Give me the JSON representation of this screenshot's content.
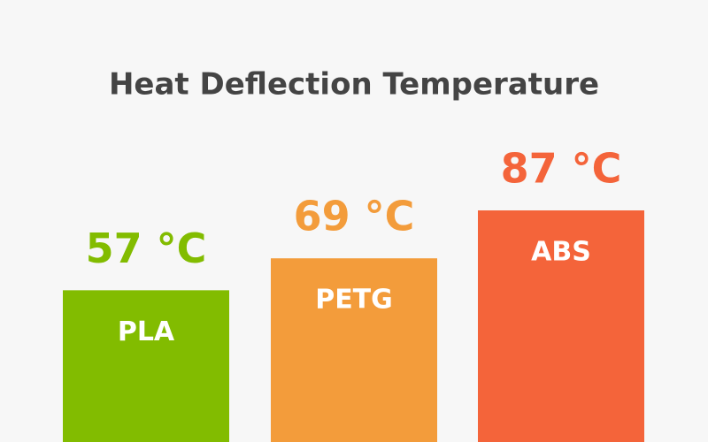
{
  "chart_data": {
    "type": "bar",
    "title": "Heat Deflection Temperature",
    "categories": [
      "PLA",
      "PETG",
      "ABS"
    ],
    "values": [
      57,
      69,
      87
    ],
    "value_labels": [
      "57 °C",
      "69 °C",
      "87 °C"
    ],
    "colors": [
      "#82bc00",
      "#f39c3b",
      "#f4643a"
    ]
  }
}
